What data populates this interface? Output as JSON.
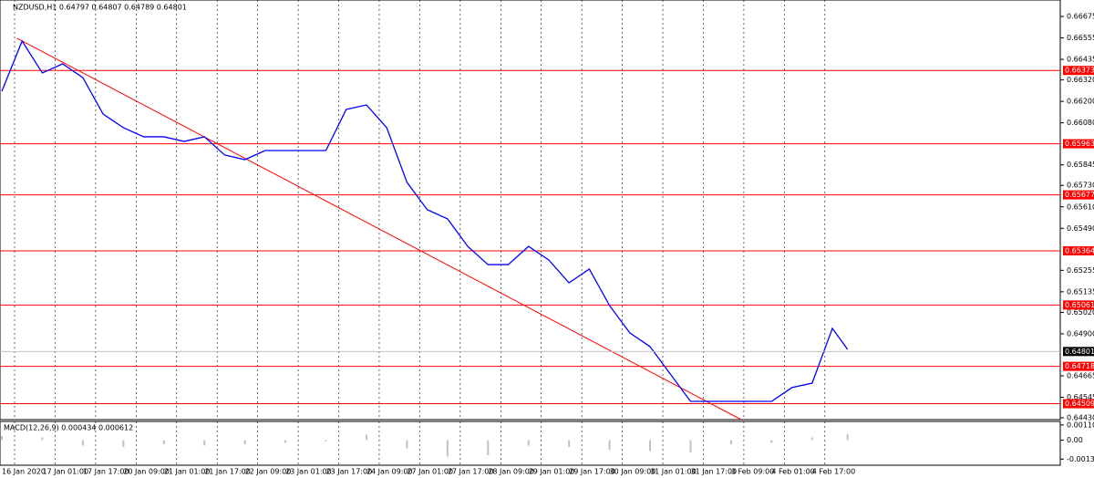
{
  "chart_data": [
    {
      "type": "line",
      "title": "NZDUSD,H1  0.64797 0.64807 0.64789 0.64801",
      "color": "#0000ff",
      "grid": true,
      "x": [
        0,
        8,
        16,
        24,
        32,
        40,
        48,
        56,
        64,
        72,
        80,
        88,
        96,
        104,
        112,
        120,
        128,
        136,
        144,
        152,
        160,
        168,
        176,
        184,
        192,
        200,
        208,
        216,
        224,
        232,
        240,
        248,
        256,
        264,
        272,
        280,
        288,
        296,
        304,
        312,
        320,
        328,
        334
      ],
      "values": [
        0.66257,
        0.66537,
        0.66359,
        0.6641,
        0.66333,
        0.66129,
        0.66053,
        0.66002,
        0.66002,
        0.65976,
        0.66002,
        0.659,
        0.65874,
        0.65925,
        0.65925,
        0.65925,
        0.65925,
        0.66155,
        0.6618,
        0.66053,
        0.65747,
        0.65594,
        0.65543,
        0.65389,
        0.65287,
        0.65287,
        0.65389,
        0.65313,
        0.65185,
        0.65262,
        0.65058,
        0.64905,
        0.64828,
        0.64675,
        0.64522,
        0.64522,
        0.64522,
        0.64522,
        0.64522,
        0.64599,
        0.64624,
        0.6493,
        0.64813
      ],
      "xlim": [
        0,
        418
      ],
      "xticks": [
        {
          "value": 0,
          "label": "16 Jan 2020"
        },
        {
          "value": 16,
          "label": "17 Jan 01:00"
        },
        {
          "value": 32,
          "label": "17 Jan 17:00"
        },
        {
          "value": 48,
          "label": "20 Jan 09:00"
        },
        {
          "value": 64,
          "label": "21 Jan 01:00"
        },
        {
          "value": 80,
          "label": "21 Jan 17:00"
        },
        {
          "value": 96,
          "label": "22 Jan 09:00"
        },
        {
          "value": 112,
          "label": "23 Jan 01:00"
        },
        {
          "value": 128,
          "label": "23 Jan 17:00"
        },
        {
          "value": 144,
          "label": "24 Jan 09:00"
        },
        {
          "value": 160,
          "label": "27 Jan 01:00"
        },
        {
          "value": 176,
          "label": "27 Jan 17:00"
        },
        {
          "value": 192,
          "label": "28 Jan 09:00"
        },
        {
          "value": 208,
          "label": "29 Jan 01:00"
        },
        {
          "value": 224,
          "label": "29 Jan 17:00"
        },
        {
          "value": 240,
          "label": "30 Jan 09:00"
        },
        {
          "value": 256,
          "label": "31 Jan 01:00"
        },
        {
          "value": 272,
          "label": "31 Jan 17:00"
        },
        {
          "value": 288,
          "label": "3 Feb 09:00"
        },
        {
          "value": 304,
          "label": "4 Feb 01:00"
        },
        {
          "value": 320,
          "label": "4 Feb 17:00"
        }
      ],
      "ylim": [
        0.6442,
        0.66767
      ],
      "yticks": [
        {
          "value": 0.66675,
          "label": "0.66675"
        },
        {
          "value": 0.66555,
          "label": "0.66555"
        },
        {
          "value": 0.66435,
          "label": "0.66435"
        },
        {
          "value": 0.6632,
          "label": "0.66320"
        },
        {
          "value": 0.662,
          "label": "0.66200"
        },
        {
          "value": 0.6608,
          "label": "0.66080"
        },
        {
          "value": 0.65845,
          "label": "0.65845"
        },
        {
          "value": 0.6573,
          "label": "0.65730"
        },
        {
          "value": 0.6561,
          "label": "0.65610"
        },
        {
          "value": 0.6549,
          "label": "0.65490"
        },
        {
          "value": 0.65255,
          "label": "0.65255"
        },
        {
          "value": 0.65135,
          "label": "0.65135"
        },
        {
          "value": 0.6502,
          "label": "0.65020"
        },
        {
          "value": 0.649,
          "label": "0.64900"
        },
        {
          "value": 0.64665,
          "label": "0.64665"
        },
        {
          "value": 0.64545,
          "label": "0.64545"
        },
        {
          "value": 0.6443,
          "label": "0.64430"
        }
      ],
      "levels": [
        0.66373,
        0.65963,
        0.65677,
        0.65364,
        0.65061,
        0.64718,
        0.64509
      ],
      "level_color": "#ff0000",
      "last_price": 0.64801,
      "trendline": {
        "x": [
          6,
          292
        ],
        "y": [
          0.66553,
          0.6442
        ]
      }
    },
    {
      "type": "bar",
      "title": "MACD(12,26,9) 0.000434 0.000612",
      "color": "#c0c0c0",
      "x": [
        0,
        16,
        32,
        48,
        64,
        80,
        96,
        112,
        128,
        144,
        160,
        176,
        192,
        208,
        224,
        240,
        256,
        272,
        288,
        304,
        320,
        334
      ],
      "values": [
        0.0003,
        0.0002,
        -0.0004,
        -0.0005,
        -0.0003,
        -0.0004,
        -0.0003,
        -0.0002,
        -0.0001,
        0.0004,
        -0.0006,
        -0.0012,
        -0.0011,
        -0.0004,
        -0.0005,
        -0.0007,
        -0.0008,
        -0.0009,
        -0.0003,
        -0.0002,
        0.0002,
        0.000434
      ],
      "ylim": [
        -0.001823,
        0.001355
      ],
      "yticks": [
        0.001101,
        {
          "value": 0,
          "label": "0.00"
        },
        -0.001378
      ]
    }
  ]
}
